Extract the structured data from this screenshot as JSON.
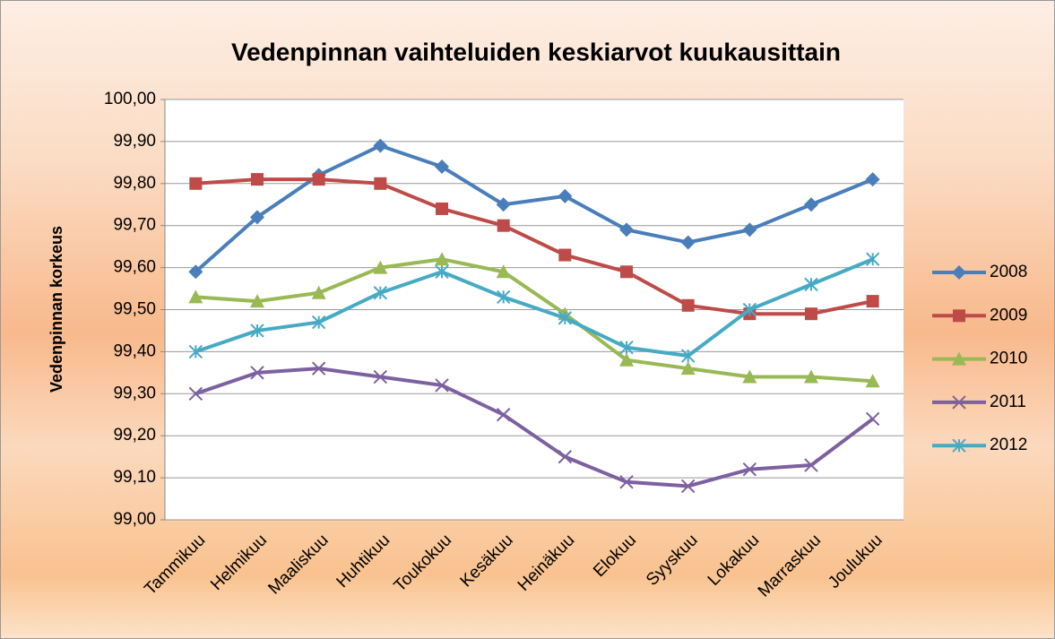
{
  "chart_data": {
    "type": "line",
    "title": "Vedenpinnan vaihteluiden keskiarvot kuukausittain",
    "y_label": "Vedenpinnan korkeus",
    "categories": [
      "Tammikuu",
      "Helmikuu",
      "Maaliskuu",
      "Huhtikuu",
      "Toukokuu",
      "Kesäkuu",
      "Heinäkuu",
      "Elokuu",
      "Syyskuu",
      "Lokakuu",
      "Marraskuu",
      "Joulukuu"
    ],
    "series": [
      {
        "name": "2008",
        "color": "#4a7ebb",
        "marker": "diamond",
        "values": [
          99.59,
          99.72,
          99.82,
          99.89,
          99.84,
          99.75,
          99.77,
          99.69,
          99.66,
          99.69,
          99.75,
          99.81
        ]
      },
      {
        "name": "2009",
        "color": "#be4b48",
        "marker": "square",
        "values": [
          99.8,
          99.81,
          99.81,
          99.8,
          99.74,
          99.7,
          99.63,
          99.59,
          99.51,
          99.49,
          99.49,
          99.52
        ]
      },
      {
        "name": "2010",
        "color": "#98b954",
        "marker": "triangle",
        "values": [
          99.53,
          99.52,
          99.54,
          99.6,
          99.62,
          99.59,
          99.49,
          99.38,
          99.36,
          99.34,
          99.34,
          99.33
        ]
      },
      {
        "name": "2011",
        "color": "#7d60a0",
        "marker": "x",
        "values": [
          99.3,
          99.35,
          99.36,
          99.34,
          99.32,
          99.25,
          99.15,
          99.09,
          99.08,
          99.12,
          99.13,
          99.24
        ]
      },
      {
        "name": "2012",
        "color": "#46aac5",
        "marker": "star",
        "values": [
          99.4,
          99.45,
          99.47,
          99.54,
          99.59,
          99.53,
          99.48,
          99.41,
          99.39,
          99.5,
          99.56,
          99.62
        ]
      }
    ],
    "ylim": [
      99.0,
      100.0
    ],
    "yticks": [
      {
        "value": 99.0,
        "label": "99,00"
      },
      {
        "value": 99.1,
        "label": "99,10"
      },
      {
        "value": 99.2,
        "label": "99,20"
      },
      {
        "value": 99.3,
        "label": "99,30"
      },
      {
        "value": 99.4,
        "label": "99,40"
      },
      {
        "value": 99.5,
        "label": "99,50"
      },
      {
        "value": 99.6,
        "label": "99,60"
      },
      {
        "value": 99.7,
        "label": "99,70"
      },
      {
        "value": 99.8,
        "label": "99,80"
      },
      {
        "value": 99.9,
        "label": "99,90"
      },
      {
        "value": 100.0,
        "label": "100,00"
      }
    ],
    "grid": true,
    "legend": "right"
  }
}
